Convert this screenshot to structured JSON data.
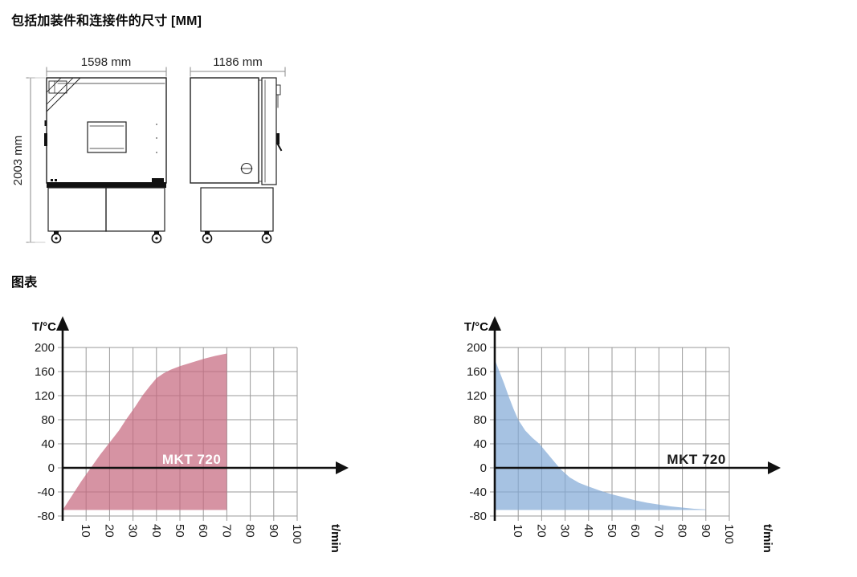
{
  "page": {
    "dimensions_title": "包括加装件和连接件的尺寸 [MM]",
    "charts_title": "图表"
  },
  "drawings": {
    "front_view": {
      "width_label": "1598 mm",
      "height_label": "2003 mm"
    },
    "side_view": {
      "width_label": "1186 mm"
    }
  },
  "chart_data": [
    {
      "type": "area",
      "id": "heating",
      "title": "MKT 720 heating curve",
      "xlabel": "t/min",
      "ylabel": "T/°C",
      "xlim": [
        0,
        100
      ],
      "ylim": [
        -80,
        200
      ],
      "x_ticks": [
        10,
        20,
        30,
        40,
        50,
        60,
        70,
        80,
        90,
        100
      ],
      "y_ticks": [
        200,
        160,
        120,
        80,
        40,
        0,
        -40,
        -80
      ],
      "grid": true,
      "grid_color": "#9a9a9a",
      "axis_color": "#111111",
      "fill_color": "#c66a80",
      "fill_opacity": 0.72,
      "baseline": -70,
      "label": {
        "text": "MKT 720",
        "x": 55,
        "y": 15,
        "color": "#ffffff"
      },
      "points": [
        [
          0,
          -70
        ],
        [
          2,
          -58
        ],
        [
          5,
          -40
        ],
        [
          8,
          -22
        ],
        [
          12,
          0
        ],
        [
          16,
          22
        ],
        [
          20,
          42
        ],
        [
          24,
          62
        ],
        [
          27,
          80
        ],
        [
          31,
          102
        ],
        [
          34,
          120
        ],
        [
          37,
          135
        ],
        [
          40,
          149
        ],
        [
          43,
          157
        ],
        [
          46,
          163
        ],
        [
          50,
          169
        ],
        [
          55,
          175
        ],
        [
          60,
          181
        ],
        [
          65,
          186
        ],
        [
          70,
          190
        ]
      ]
    },
    {
      "type": "area",
      "id": "cooling",
      "title": "MKT 720 cooling curve",
      "xlabel": "t/min",
      "ylabel": "T/°C",
      "xlim": [
        0,
        100
      ],
      "ylim": [
        -80,
        200
      ],
      "x_ticks": [
        10,
        20,
        30,
        40,
        50,
        60,
        70,
        80,
        90,
        100
      ],
      "y_ticks": [
        200,
        160,
        120,
        80,
        40,
        0,
        -40,
        -80
      ],
      "grid": true,
      "grid_color": "#9a9a9a",
      "axis_color": "#111111",
      "fill_color": "#80a8d6",
      "fill_opacity": 0.7,
      "baseline": -70,
      "label": {
        "text": "MKT 720",
        "x": 86,
        "y": 15,
        "color": "#1a1a1a"
      },
      "points": [
        [
          0,
          180
        ],
        [
          2,
          160
        ],
        [
          4,
          140
        ],
        [
          6,
          118
        ],
        [
          8,
          98
        ],
        [
          10,
          80
        ],
        [
          13,
          62
        ],
        [
          16,
          50
        ],
        [
          19,
          40
        ],
        [
          22,
          26
        ],
        [
          25,
          12
        ],
        [
          28,
          -2
        ],
        [
          32,
          -16
        ],
        [
          36,
          -25
        ],
        [
          40,
          -31
        ],
        [
          45,
          -38
        ],
        [
          50,
          -44
        ],
        [
          55,
          -49
        ],
        [
          60,
          -54
        ],
        [
          65,
          -58
        ],
        [
          70,
          -61
        ],
        [
          75,
          -64
        ],
        [
          80,
          -66
        ],
        [
          85,
          -68
        ],
        [
          90,
          -69
        ]
      ]
    }
  ]
}
